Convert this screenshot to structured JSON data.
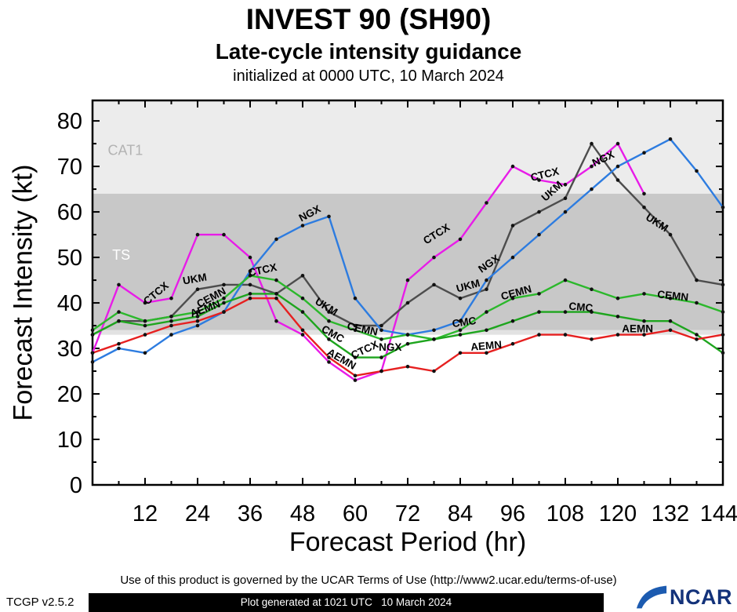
{
  "chart_data": {
    "type": "line",
    "title": "INVEST 90 (SH90)",
    "subtitle": "Late-cycle intensity guidance",
    "init_line": "initialized at 0000 UTC, 10 March 2024",
    "xlabel": "Forecast Period (hr)",
    "ylabel": "Forecast Intensity (kt)",
    "xlim": [
      0,
      144
    ],
    "ylim": [
      0,
      84.5
    ],
    "x_ticks": [
      12,
      24,
      36,
      48,
      60,
      72,
      84,
      96,
      108,
      120,
      132,
      144
    ],
    "y_ticks": [
      0,
      10,
      20,
      30,
      40,
      50,
      60,
      70,
      80
    ],
    "x_minor_step": 6,
    "y_minor_step": 5,
    "grid": false,
    "legend": "labels-along-lines",
    "bands": [
      {
        "name": "CAT1",
        "from": 64,
        "to": 84.5,
        "color": "#ececec",
        "label": {
          "text": "CAT1",
          "x": 3.5,
          "y": 72.5,
          "color": "#b3b3b3"
        }
      },
      {
        "name": "TS",
        "from": 34,
        "to": 64,
        "color": "#c8c8c8",
        "label": {
          "text": "TS",
          "x": 4.5,
          "y": 49.5,
          "color": "#ffffff"
        }
      },
      {
        "name": "sub-ts-strip",
        "from": 33,
        "to": 34,
        "color": "#e2e2e2"
      }
    ],
    "x": [
      0,
      6,
      12,
      18,
      24,
      30,
      36,
      42,
      48,
      54,
      60,
      66,
      72,
      78,
      84,
      90,
      96,
      102,
      108,
      114,
      120,
      126,
      132,
      138,
      144
    ],
    "series": [
      {
        "name": "CTCX",
        "color": "#e81ce8",
        "values": [
          29,
          44,
          40,
          41,
          55,
          55,
          50,
          36,
          33,
          27,
          23,
          25,
          45,
          50,
          54,
          62,
          70,
          67,
          66,
          70,
          75,
          64,
          null,
          null,
          null
        ]
      },
      {
        "name": "UKM",
        "color": "#4d4d4d",
        "values": [
          33,
          36,
          36,
          37,
          43,
          44,
          44,
          42,
          46,
          38,
          35,
          35,
          40,
          44,
          41,
          43,
          57,
          60,
          63,
          75,
          67,
          61,
          55,
          45,
          44
        ]
      },
      {
        "name": "NGX",
        "color": "#2d7ce0",
        "values": [
          27,
          30,
          29,
          33,
          35,
          38,
          47,
          54,
          57,
          59,
          41,
          34,
          33,
          34,
          36,
          45,
          50,
          55,
          60,
          65,
          70,
          73,
          76,
          69,
          61
        ]
      },
      {
        "name": "CEMN",
        "color": "#2cb82c",
        "values": [
          34,
          38,
          36,
          37,
          38,
          41,
          46,
          45,
          41,
          36,
          34,
          32,
          33,
          32,
          34,
          38,
          41,
          42,
          45,
          43,
          41,
          42,
          41,
          40,
          38
        ]
      },
      {
        "name": "CMC",
        "color": "#1ea51e",
        "values": [
          33,
          36,
          35,
          36,
          37,
          40,
          42,
          42,
          38,
          32,
          28,
          28,
          31,
          32,
          33,
          34,
          36,
          38,
          38,
          38,
          37,
          36,
          36,
          33,
          29
        ]
      },
      {
        "name": "AEMN",
        "color": "#e62020",
        "values": [
          29,
          31,
          33,
          35,
          36,
          38,
          41,
          41,
          34,
          28,
          24,
          25,
          26,
          25,
          29,
          29,
          31,
          33,
          33,
          32,
          33,
          33,
          34,
          32,
          33
        ]
      }
    ],
    "line_labels": [
      {
        "text": "CTCX",
        "x": 15,
        "y": 41.5,
        "rot": -40
      },
      {
        "text": "UKM",
        "x": 23.5,
        "y": 44.5,
        "rot": -10
      },
      {
        "text": "CEMN",
        "x": 27.5,
        "y": 40.5,
        "rot": -28
      },
      {
        "text": "AEMN",
        "x": 26,
        "y": 38,
        "rot": -20
      },
      {
        "text": "CTCX",
        "x": 39,
        "y": 46.5,
        "rot": -12
      },
      {
        "text": "NGX",
        "x": 50,
        "y": 59,
        "rot": -28
      },
      {
        "text": "UKM",
        "x": 53,
        "y": 38.5,
        "rot": 32
      },
      {
        "text": "CMC",
        "x": 54.5,
        "y": 32.5,
        "rot": 30
      },
      {
        "text": "AEMN",
        "x": 56.5,
        "y": 27,
        "rot": 30
      },
      {
        "text": "CEMN",
        "x": 61.5,
        "y": 33.5,
        "rot": 12
      },
      {
        "text": "CTCX",
        "x": 62.5,
        "y": 29,
        "rot": -25
      },
      {
        "text": "NGX",
        "x": 68,
        "y": 29.5,
        "rot": 0
      },
      {
        "text": "CTCX",
        "x": 79,
        "y": 54.5,
        "rot": -32
      },
      {
        "text": "UKM",
        "x": 86,
        "y": 43,
        "rot": -15
      },
      {
        "text": "CMC",
        "x": 85,
        "y": 35,
        "rot": -8
      },
      {
        "text": "AEMN",
        "x": 90,
        "y": 29.8,
        "rot": -5
      },
      {
        "text": "NGX",
        "x": 91,
        "y": 48,
        "rot": -35
      },
      {
        "text": "CEMN",
        "x": 97,
        "y": 41.5,
        "rot": -15
      },
      {
        "text": "CTCX",
        "x": 103.5,
        "y": 67.5,
        "rot": -14
      },
      {
        "text": "UKM",
        "x": 105.5,
        "y": 64,
        "rot": -42
      },
      {
        "text": "CMC",
        "x": 111.5,
        "y": 38.3,
        "rot": 5
      },
      {
        "text": "NGX",
        "x": 117,
        "y": 71,
        "rot": -25
      },
      {
        "text": "AEMN",
        "x": 124.5,
        "y": 33.5,
        "rot": 0
      },
      {
        "text": "UKM",
        "x": 128.5,
        "y": 57,
        "rot": 33
      },
      {
        "text": "CEMN",
        "x": 132.5,
        "y": 40.8,
        "rot": 6
      }
    ]
  },
  "footer": {
    "terms": "Use of this product is governed by the UCAR Terms of Use (http://www2.ucar.edu/terms-of-use)",
    "generated": "Plot generated at 1021 UTC   10 March 2024",
    "version": "TCGP v2.5.2",
    "logo_text": "NCAR"
  }
}
